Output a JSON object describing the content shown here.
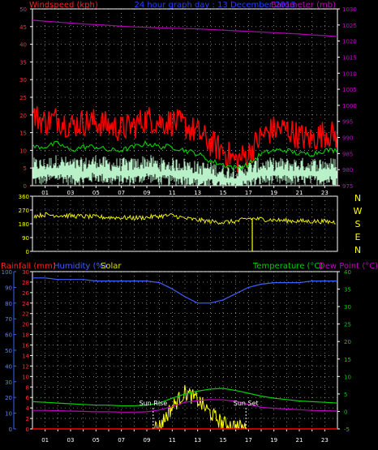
{
  "header": {
    "windspeed_label": "Windspeed (kph)",
    "graph_title": "24 hour graph day : 13 December 2013",
    "barometer_label": "Barometer (mb)"
  },
  "colors": {
    "background": "#000000",
    "frame": "#ffffff",
    "gust": "#ff0000",
    "average": "#00d000",
    "minimum": "#b8f0c8",
    "barometer": "#b000b0",
    "direction": "#ffff00",
    "humidity": "#4060ff",
    "temperature": "#00d000",
    "dewpoint": "#c000c0",
    "solar": "#ffff00",
    "rainfall": "#ff0000",
    "grid": "#c8c8c8",
    "sun_marker": "#ffffff"
  },
  "hour_labels": [
    "01",
    "03",
    "05",
    "07",
    "09",
    "11",
    "13",
    "15",
    "17",
    "19",
    "21",
    "23"
  ],
  "chart_data": [
    {
      "type": "line",
      "name": "wind-barometer",
      "left_axis": {
        "label": "Windspeed (kph)",
        "range": [
          0,
          50
        ],
        "ticks": [
          0,
          5,
          10,
          15,
          20,
          25,
          30,
          35,
          40,
          45,
          50
        ]
      },
      "right_axis": {
        "label": "Barometer (mb)",
        "range": [
          975,
          1030
        ],
        "ticks": [
          975,
          980,
          985,
          990,
          995,
          1000,
          1005,
          1010,
          1015,
          1020,
          1025,
          1030
        ]
      },
      "x": [
        0,
        1,
        2,
        3,
        4,
        5,
        6,
        7,
        8,
        9,
        10,
        11,
        12,
        13,
        14,
        15,
        16,
        17,
        18,
        19,
        20,
        21,
        22,
        23,
        24
      ],
      "series": [
        {
          "key": "gust",
          "values": [
            20,
            18,
            19,
            17,
            18,
            18,
            17,
            16,
            17,
            19,
            18,
            18,
            17,
            15,
            12,
            10,
            7,
            9,
            14,
            16,
            16,
            14,
            13,
            15,
            14
          ]
        },
        {
          "key": "average",
          "values": [
            11,
            11,
            12,
            10,
            11,
            11,
            10,
            10,
            11,
            12,
            11,
            11,
            10,
            9,
            7,
            6,
            5,
            6,
            9,
            10,
            10,
            9,
            9,
            10,
            10
          ]
        },
        {
          "key": "minimum",
          "values": [
            3,
            3,
            4,
            3,
            3,
            4,
            3,
            3,
            3,
            4,
            3,
            3,
            3,
            2,
            2,
            1,
            1,
            2,
            3,
            3,
            3,
            3,
            3,
            3,
            3
          ]
        },
        {
          "key": "barometer",
          "values": [
            1026.5,
            1026.2,
            1025.9,
            1025.6,
            1025.3,
            1025.1,
            1024.9,
            1024.6,
            1024.4,
            1024.3,
            1024.1,
            1024.0,
            1023.9,
            1023.8,
            1023.6,
            1023.4,
            1023.2,
            1023.0,
            1022.8,
            1022.6,
            1022.4,
            1022.2,
            1021.9,
            1021.7,
            1021.4
          ]
        }
      ]
    },
    {
      "type": "scatter",
      "name": "wind-direction",
      "left_axis": {
        "range": [
          0,
          360
        ],
        "ticks": [
          0,
          90,
          180,
          270,
          360
        ]
      },
      "right_labels": [
        "N",
        "W",
        "S",
        "E",
        "N"
      ],
      "x": [
        0,
        1,
        2,
        3,
        4,
        5,
        6,
        7,
        8,
        9,
        10,
        11,
        12,
        13,
        14,
        15,
        16,
        17,
        18,
        19,
        20,
        21,
        22,
        23,
        24
      ],
      "values": [
        230,
        240,
        235,
        232,
        228,
        225,
        222,
        220,
        218,
        222,
        230,
        235,
        215,
        205,
        195,
        190,
        195,
        215,
        210,
        205,
        200,
        198,
        196,
        195,
        190
      ],
      "spike": {
        "hour": 17.3,
        "value": 0
      }
    },
    {
      "type": "line",
      "name": "temperature-humidity-solar",
      "left_axis": {
        "range": [
          0,
          30
        ],
        "ticks": [
          0,
          2,
          4,
          6,
          8,
          10,
          12,
          14,
          16,
          18,
          20,
          22,
          24,
          26,
          28,
          30
        ]
      },
      "humidity_axis": {
        "range": [
          0,
          100
        ],
        "ticks": [
          0,
          10,
          20,
          30,
          40,
          50,
          60,
          70,
          80,
          90,
          100
        ]
      },
      "right_axis": {
        "range": [
          -5,
          40
        ],
        "ticks": [
          -5,
          0,
          5,
          10,
          15,
          20,
          25,
          30,
          35,
          40
        ]
      },
      "labels": {
        "rainfall": "Rainfall (mm)",
        "humidity": "Humidity (%)",
        "solar": "Solar",
        "temperature": "Temperature (°C)",
        "dewpoint": "Dew Point (°C)"
      },
      "annotations": {
        "sunrise": {
          "label": "Sun Rise",
          "hour": 9.5
        },
        "sunset": {
          "label": "Sun Set",
          "hour": 16.8
        }
      },
      "x": [
        0,
        1,
        2,
        3,
        4,
        5,
        6,
        7,
        8,
        9,
        10,
        11,
        12,
        13,
        14,
        15,
        16,
        17,
        18,
        19,
        20,
        21,
        22,
        23,
        24
      ],
      "series": [
        {
          "key": "humidity",
          "values": [
            96,
            96,
            95,
            95,
            95,
            94,
            94,
            94,
            94,
            94,
            93,
            89,
            84,
            80,
            80,
            82,
            86,
            90,
            92,
            93,
            93,
            93,
            94,
            94,
            94
          ]
        },
        {
          "key": "temperature",
          "values": [
            2.8,
            2.6,
            2.4,
            2.2,
            2.0,
            1.8,
            1.8,
            1.6,
            1.6,
            1.8,
            2.4,
            3.8,
            5.0,
            5.8,
            6.4,
            6.6,
            6.0,
            5.2,
            4.4,
            3.8,
            3.4,
            3.0,
            2.8,
            2.6,
            2.4
          ]
        },
        {
          "key": "dewpoint",
          "values": [
            0.3,
            0.3,
            0.2,
            0.1,
            0.0,
            -0.1,
            -0.1,
            -0.2,
            -0.2,
            -0.1,
            0.4,
            1.4,
            2.6,
            3.1,
            3.4,
            3.3,
            2.9,
            2.0,
            1.2,
            0.9,
            0.7,
            0.5,
            0.3,
            0.2,
            0.1
          ]
        },
        {
          "key": "solar",
          "values": [
            0,
            0,
            0,
            0,
            0,
            0,
            0,
            0,
            0,
            0,
            0.5,
            4.2,
            7.0,
            5.5,
            3.0,
            1.0,
            0.5,
            0,
            0,
            0,
            0,
            0,
            0,
            0,
            0
          ]
        },
        {
          "key": "rainfall",
          "values": [
            0,
            0,
            0,
            0,
            0,
            0,
            0,
            0,
            0,
            0,
            0,
            0,
            0,
            0,
            0,
            0,
            0,
            0,
            0,
            0,
            0,
            0,
            0,
            0,
            0
          ]
        }
      ]
    }
  ]
}
